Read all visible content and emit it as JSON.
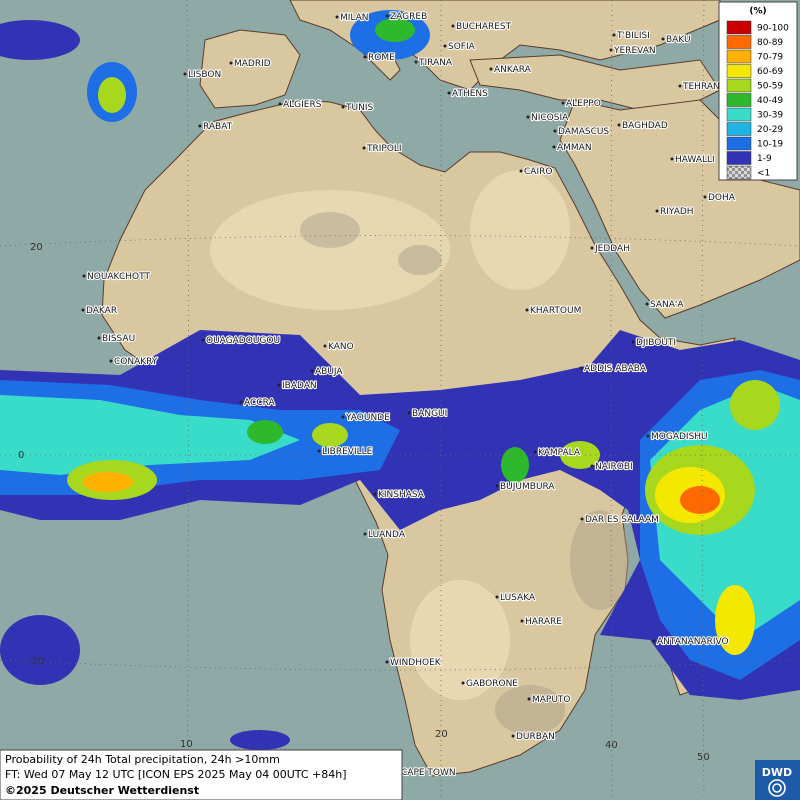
{
  "legend": {
    "unit": "(%)",
    "items": [
      {
        "label": "90-100",
        "color": "#c80000"
      },
      {
        "label": "80-89",
        "color": "#ff6a00"
      },
      {
        "label": "70-79",
        "color": "#ffb000"
      },
      {
        "label": "60-69",
        "color": "#f5e800"
      },
      {
        "label": "50-59",
        "color": "#a8d81e"
      },
      {
        "label": "40-49",
        "color": "#2eb82e"
      },
      {
        "label": "30-39",
        "color": "#38dcc8"
      },
      {
        "label": "20-29",
        "color": "#1eb4e6"
      },
      {
        "label": "10-19",
        "color": "#1e6ee6"
      },
      {
        "label": "1-9",
        "color": "#3232b4"
      },
      {
        "label": "<1",
        "color": "#b4b4b4"
      }
    ]
  },
  "cities": [
    "MILAN",
    "ZAGREB",
    "BUCHAREST",
    "T'BILISI",
    "BAKU",
    "MADRID",
    "ROME",
    "SOFIA",
    "YEREVAN",
    "LISBON",
    "TIRANA",
    "ANKARA",
    "TEHRAN",
    "ALGIERS",
    "TUNIS",
    "ATHENS",
    "ALEPPO",
    "RABAT",
    "NICOSIA",
    "BAGHDAD",
    "TRIPOLI",
    "DAMASCUS",
    "AMMAN",
    "HAWALLI",
    "CAIRO",
    "DOHA",
    "RIYADH",
    "JEDDAH",
    "NOUAKCHOTT",
    "SANA'A",
    "DAKAR",
    "KHARTOUM",
    "BISSAU",
    "OUAGADOUGOU",
    "KANO",
    "DJIBOUTI",
    "CONAKRY",
    "ADDIS ABABA",
    "ABUJA",
    "IBADAN",
    "ACCRA",
    "YAOUNDE",
    "BANGUI",
    "MOGADISHU",
    "LIBREVILLE",
    "KAMPALA",
    "NAIROBI",
    "KINSHASA",
    "BUJUMBURA",
    "DAR ES SALAAM",
    "LUANDA",
    "LUSAKA",
    "HARARE",
    "ANTANANARIVO",
    "WINDHOEK",
    "GABORONE",
    "MAPUTO",
    "DURBAN",
    "CAPE TOWN"
  ],
  "grid_labels": [
    "20",
    "0",
    "-20",
    "10",
    "20",
    "40",
    "50"
  ],
  "info": {
    "line1": "Probability of 24h Total precipitation, 24h >10mm",
    "line2": "FT: Wed 07 May 12 UTC [ICON EPS 2025 May 04 00UTC +84h]",
    "line3": "©2025 Deutscher Wetterdienst"
  },
  "logo": "DWD"
}
